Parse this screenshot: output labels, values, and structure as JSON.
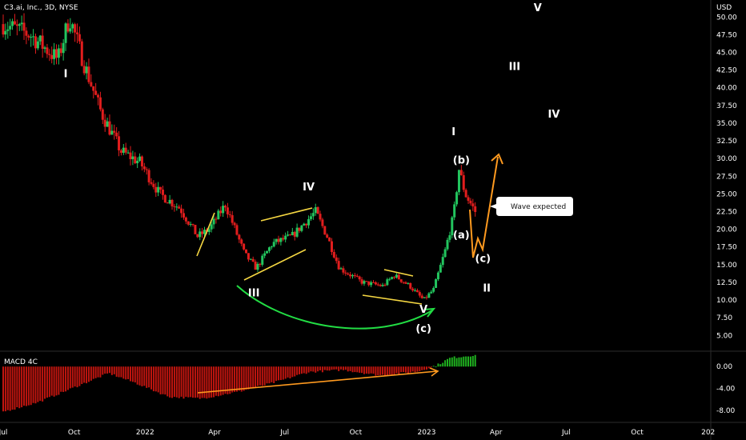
{
  "header": {
    "symbol_line": "C3.ai, Inc., 3D, NYSE",
    "currency": "USD"
  },
  "colors": {
    "background": "#000000",
    "bull": "#22c55e",
    "bear": "#e11d1d",
    "macd_negative": "#c0150f",
    "macd_positive": "#1fb01f",
    "wedge_lines": "#f5d742",
    "arc": "#22dd44",
    "arrows": "#ff9a1f",
    "axis_text": "#ffffff"
  },
  "chart_data": [
    {
      "type": "candlestick",
      "title": "C3.ai, Inc., 3D, NYSE",
      "y_axis_label": "USD",
      "y_ticks": [
        "50.00",
        "47.50",
        "45.00",
        "42.50",
        "40.00",
        "37.50",
        "35.00",
        "32.50",
        "30.00",
        "27.50",
        "25.00",
        "22.50",
        "20.00",
        "17.50",
        "15.00",
        "12.50",
        "10.00",
        "7.50",
        "5.00"
      ],
      "x_ticks": [
        "Jul",
        "Oct",
        "2022",
        "Apr",
        "Jul",
        "Oct",
        "2023",
        "Apr",
        "Jul",
        "Oct",
        "202"
      ],
      "grid": false,
      "close_path": [
        {
          "date": "2021-07-01",
          "close": 49.0
        },
        {
          "date": "2021-08-05",
          "close": 47.5
        },
        {
          "date": "2021-09-10",
          "close": 44.0
        },
        {
          "date": "2021-09-25",
          "close": 50.0
        },
        {
          "date": "2021-10-15",
          "close": 43.0
        },
        {
          "date": "2021-11-05",
          "close": 36.5
        },
        {
          "date": "2021-12-01",
          "close": 31.0
        },
        {
          "date": "2021-12-25",
          "close": 29.5
        },
        {
          "date": "2022-01-20",
          "close": 25.0
        },
        {
          "date": "2022-02-15",
          "close": 23.0
        },
        {
          "date": "2022-03-10",
          "close": 19.0
        },
        {
          "date": "2022-03-25",
          "close": 20.0
        },
        {
          "date": "2022-04-15",
          "close": 23.5
        },
        {
          "date": "2022-05-10",
          "close": 16.5
        },
        {
          "date": "2022-05-25",
          "close": 14.5
        },
        {
          "date": "2022-06-15",
          "close": 18.0
        },
        {
          "date": "2022-07-10",
          "close": 19.0
        },
        {
          "date": "2022-08-10",
          "close": 22.5
        },
        {
          "date": "2022-08-25",
          "close": 19.0
        },
        {
          "date": "2022-09-10",
          "close": 14.5
        },
        {
          "date": "2022-10-10",
          "close": 12.5
        },
        {
          "date": "2022-11-05",
          "close": 12.0
        },
        {
          "date": "2022-11-20",
          "close": 13.5
        },
        {
          "date": "2022-12-10",
          "close": 12.0
        },
        {
          "date": "2022-12-28",
          "close": 10.0
        },
        {
          "date": "2023-01-10",
          "close": 11.5
        },
        {
          "date": "2023-01-25",
          "close": 17.0
        },
        {
          "date": "2023-02-05",
          "close": 22.0
        },
        {
          "date": "2023-02-12",
          "close": 28.5
        },
        {
          "date": "2023-02-20",
          "close": 25.0
        },
        {
          "date": "2023-03-05",
          "close": 22.5
        }
      ],
      "wave_labels": [
        {
          "text": "I",
          "date": "2021-09-20",
          "price": 41.5
        },
        {
          "text": "III",
          "date": "2022-05-22",
          "price": 10.5
        },
        {
          "text": "IV",
          "date": "2022-08-01",
          "price": 25.5
        },
        {
          "text": "V",
          "date": "2022-12-28",
          "price": 8.2
        },
        {
          "text": "(c)",
          "date": "2022-12-28",
          "price": 5.5
        },
        {
          "text": "I",
          "date": "2023-02-05",
          "price": 33.3
        },
        {
          "text": "(b)",
          "date": "2023-02-15",
          "price": 29.3
        },
        {
          "text": "(a)",
          "date": "2023-02-15",
          "price": 18.7
        },
        {
          "text": "(c)",
          "date": "2023-03-15",
          "price": 15.4
        },
        {
          "text": "II",
          "date": "2023-03-20",
          "price": 11.2
        },
        {
          "text": "III",
          "date": "2023-04-25",
          "price": 42.5
        },
        {
          "text": "IV",
          "date": "2023-06-15",
          "price": 35.8
        },
        {
          "text": "V",
          "date": "2023-05-25",
          "price": 50.8
        }
      ],
      "annotations": [
        {
          "type": "callout",
          "text": "Wave expected",
          "date": "2023-04-10",
          "price": 23.9
        }
      ],
      "ylim": [
        3.0,
        51.5
      ]
    },
    {
      "type": "histogram",
      "title": "MACD 4C",
      "y_ticks": [
        "0.00",
        "-4.00",
        "-8.00"
      ],
      "ylim": [
        -10.0,
        2.5
      ],
      "series": [
        {
          "name": "MACD 4C",
          "points": [
            {
              "date": "2021-07-01",
              "value": -8.2
            },
            {
              "date": "2021-08-15",
              "value": -6.5
            },
            {
              "date": "2021-10-01",
              "value": -3.8
            },
            {
              "date": "2021-11-15",
              "value": -1.2
            },
            {
              "date": "2021-12-20",
              "value": -3.0
            },
            {
              "date": "2022-02-01",
              "value": -5.5
            },
            {
              "date": "2022-03-15",
              "value": -5.8
            },
            {
              "date": "2022-05-01",
              "value": -4.6
            },
            {
              "date": "2022-06-15",
              "value": -3.0
            },
            {
              "date": "2022-08-01",
              "value": -1.0
            },
            {
              "date": "2022-09-15",
              "value": -0.6
            },
            {
              "date": "2022-11-01",
              "value": -1.6
            },
            {
              "date": "2022-12-20",
              "value": -0.9
            },
            {
              "date": "2023-01-15",
              "value": 0.3
            },
            {
              "date": "2023-02-01",
              "value": 1.6
            },
            {
              "date": "2023-03-05",
              "value": 2.1
            }
          ]
        }
      ]
    }
  ]
}
